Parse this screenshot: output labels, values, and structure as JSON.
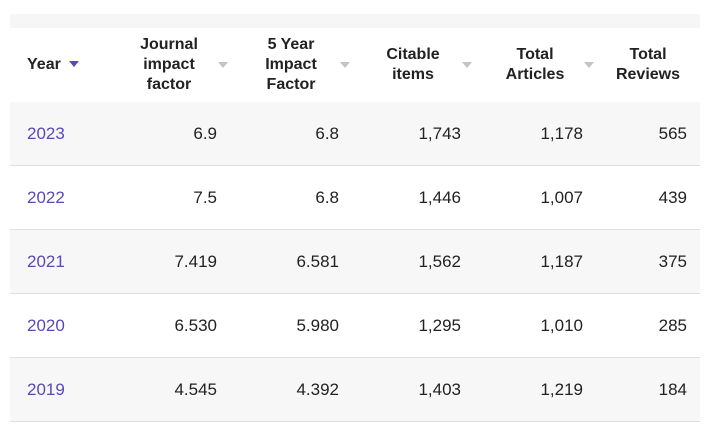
{
  "table": {
    "headers": [
      {
        "lines": [
          "Year"
        ]
      },
      {
        "lines": [
          "Journal",
          "impact",
          "factor"
        ]
      },
      {
        "lines": [
          "5 Year",
          "Impact",
          "Factor"
        ]
      },
      {
        "lines": [
          "Citable",
          "items"
        ]
      },
      {
        "lines": [
          "Total",
          "Articles"
        ]
      },
      {
        "lines": [
          "Total",
          "Reviews"
        ]
      }
    ],
    "rows": [
      {
        "year": "2023",
        "jif": "6.9",
        "five_year": "6.8",
        "citable": "1,743",
        "articles": "1,178",
        "reviews": "565"
      },
      {
        "year": "2022",
        "jif": "7.5",
        "five_year": "6.8",
        "citable": "1,446",
        "articles": "1,007",
        "reviews": "439"
      },
      {
        "year": "2021",
        "jif": "7.419",
        "five_year": "6.581",
        "citable": "1,562",
        "articles": "1,187",
        "reviews": "375"
      },
      {
        "year": "2020",
        "jif": "6.530",
        "five_year": "5.980",
        "citable": "1,295",
        "articles": "1,010",
        "reviews": "285"
      },
      {
        "year": "2019",
        "jif": "4.545",
        "five_year": "4.392",
        "citable": "1,403",
        "articles": "1,219",
        "reviews": "184"
      }
    ]
  },
  "colors": {
    "accent": "#5b48b8",
    "sort_inactive": "#c4c4c4",
    "row_alt": "#f7f7f7",
    "border": "#e0e0e0"
  },
  "icons": {
    "active_sort": "caret-down-icon",
    "inactive_sort": "caret-down-icon"
  }
}
